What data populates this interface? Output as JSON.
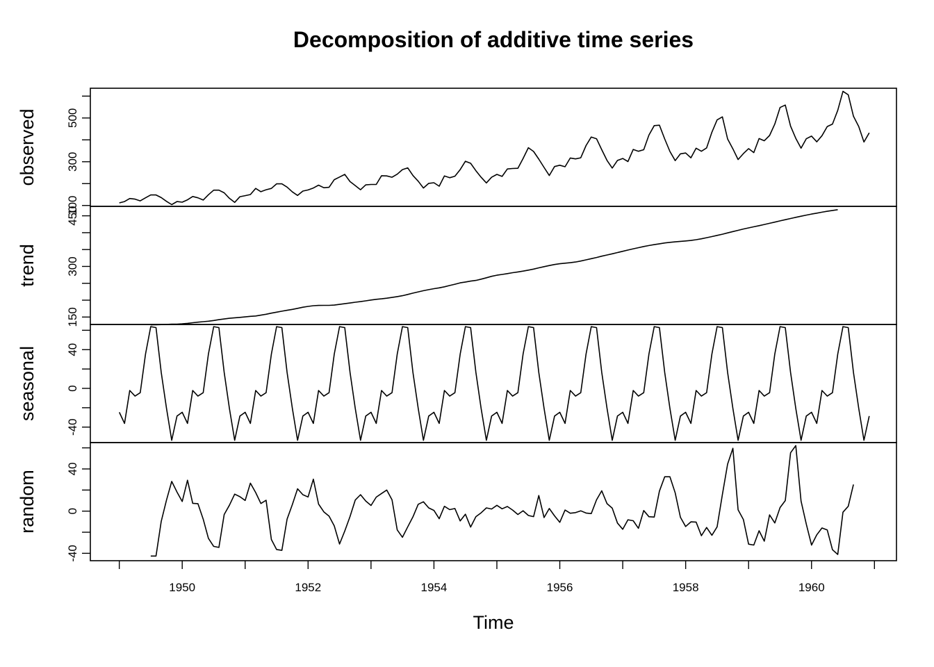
{
  "chart_data": {
    "type": "line",
    "title": "Decomposition of additive time series",
    "xlabel": "Time",
    "x_start": 1949,
    "frequency": 12,
    "xlim": [
      1948.54,
      1961.35
    ],
    "x_ticks": [
      1950,
      1952,
      1954,
      1956,
      1958,
      1960
    ],
    "grid": false,
    "panels": [
      {
        "name": "observed",
        "ylim": [
          96,
          636
        ],
        "y_tick_labels": [
          100,
          300,
          500
        ],
        "y_minor_ticks": [
          100,
          200,
          300,
          400,
          500,
          600
        ],
        "values": [
          112,
          118,
          132,
          129,
          121,
          135,
          148,
          148,
          136,
          119,
          104,
          118,
          115,
          126,
          141,
          135,
          125,
          149,
          170,
          170,
          158,
          133,
          114,
          140,
          145,
          150,
          178,
          163,
          172,
          178,
          199,
          199,
          184,
          162,
          146,
          166,
          171,
          180,
          193,
          181,
          183,
          218,
          230,
          242,
          209,
          191,
          172,
          194,
          196,
          196,
          236,
          235,
          229,
          243,
          264,
          272,
          237,
          211,
          180,
          201,
          204,
          188,
          235,
          227,
          234,
          264,
          302,
          293,
          259,
          229,
          203,
          229,
          242,
          233,
          267,
          269,
          270,
          315,
          364,
          347,
          312,
          274,
          237,
          278,
          284,
          277,
          317,
          313,
          318,
          374,
          413,
          405,
          355,
          306,
          271,
          306,
          315,
          301,
          356,
          348,
          355,
          422,
          465,
          467,
          404,
          347,
          305,
          336,
          340,
          318,
          362,
          348,
          363,
          435,
          491,
          505,
          404,
          359,
          310,
          337,
          360,
          342,
          406,
          396,
          420,
          472,
          548,
          559,
          463,
          407,
          362,
          405,
          417,
          391,
          419,
          461,
          472,
          535,
          622,
          606,
          508,
          461,
          390,
          432
        ]
      },
      {
        "name": "trend",
        "ylim": [
          128,
          478
        ],
        "y_tick_labels": [
          150,
          300,
          450
        ],
        "y_minor_ticks": [
          150,
          200,
          250,
          300,
          350,
          400,
          450
        ],
        "offset": 6,
        "values": [
          126.8,
          127.2,
          127.6,
          128.3,
          128.8,
          129.0,
          129.8,
          131.3,
          133.1,
          134.8,
          136.3,
          137.7,
          139.7,
          142.2,
          144.2,
          146.3,
          147.7,
          149.0,
          150.5,
          152.0,
          153.2,
          155.5,
          158.3,
          161.5,
          164.4,
          167.4,
          170.1,
          172.7,
          175.8,
          179.0,
          181.6,
          183.6,
          184.5,
          184.7,
          184.7,
          185.5,
          187.5,
          189.6,
          191.7,
          193.8,
          195.7,
          197.9,
          200.5,
          202.5,
          204.0,
          205.9,
          208.1,
          210.6,
          213.3,
          217.0,
          220.9,
          224.5,
          228.0,
          231.1,
          234.0,
          236.5,
          239.6,
          243.4,
          247.3,
          251.3,
          253.8,
          256.5,
          258.6,
          262.3,
          266.3,
          270.6,
          273.9,
          276.3,
          278.7,
          281.3,
          283.7,
          286.1,
          288.9,
          292.0,
          295.7,
          299.2,
          302.6,
          305.7,
          307.9,
          309.6,
          311.0,
          313.0,
          315.9,
          319.4,
          322.9,
          326.5,
          330.4,
          333.8,
          337.3,
          341.0,
          344.7,
          348.5,
          352.3,
          355.6,
          358.9,
          361.8,
          364.6,
          367.1,
          369.4,
          371.3,
          372.8,
          374.2,
          375.4,
          377.0,
          379.1,
          381.8,
          385.1,
          388.5,
          392.0,
          395.5,
          399.4,
          403.2,
          407.0,
          410.8,
          414.2,
          417.5,
          420.8,
          424.3,
          427.8,
          431.3,
          434.9,
          438.4,
          441.9,
          445.4,
          448.8,
          452.0,
          455.1,
          457.9,
          460.7,
          463.3,
          465.8,
          468.2
        ]
      },
      {
        "name": "seasonal",
        "ylim": [
          -56,
          66
        ],
        "y_tick_labels": [
          -40,
          0,
          40
        ],
        "y_minor_ticks": [
          -40,
          -20,
          0,
          20,
          40,
          60
        ],
        "repeat": 12,
        "values": [
          -24.7,
          -36.2,
          -2.2,
          -8.0,
          -4.5,
          35.4,
          63.8,
          62.8,
          16.5,
          -20.6,
          -53.6,
          -28.6
        ]
      },
      {
        "name": "random",
        "ylim": [
          -47,
          65
        ],
        "y_tick_labels": [
          -40,
          0,
          40
        ],
        "y_minor_ticks": [
          -40,
          -20,
          0,
          20,
          40,
          60
        ],
        "offset": 6,
        "values": [
          -42.6,
          -42.6,
          -9.7,
          10.5,
          28.2,
          18.1,
          9.1,
          29.3,
          7.4,
          7.1,
          -7.6,
          -25.8,
          -33.4,
          -34.4,
          -3.2,
          5.6,
          16.1,
          13.7,
          10.1,
          26.5,
          17.6,
          7.2,
          10.3,
          -26.9,
          -36.4,
          -37.2,
          -7.6,
          6.3,
          21.2,
          15.6,
          13.4,
          30.3,
          6.7,
          -0.7,
          -4.8,
          -14.0,
          -31.2,
          -18.9,
          -5.1,
          10.5,
          15.6,
          9.6,
          5.4,
          13.3,
          16.7,
          20.0,
          10.7,
          -17.8,
          -24.8,
          -14.9,
          -5.4,
          6.5,
          8.9,
          3.1,
          0.7,
          -7.2,
          4.6,
          1.4,
          2.5,
          -9.3,
          -2.9,
          -15.1,
          -5.2,
          -1.6,
          3.1,
          2.0,
          5.5,
          2.2,
          4.4,
          1.0,
          -3.2,
          0.4,
          -4.1,
          -5.2,
          14.8,
          -6.1,
          2.5,
          -4.5,
          -10.6,
          1.0,
          -2.0,
          -1.4,
          0.3,
          -1.8,
          -2.3,
          10.7,
          19.3,
          7.1,
          2.8,
          -11.3,
          -17.2,
          -8.2,
          -9.1,
          -16.3,
          0.6,
          -5.3,
          -5.6,
          19.0,
          32.6,
          32.6,
          17.3,
          -5.8,
          -14.6,
          -10.2,
          -10.4,
          -23.3,
          -15.5,
          -22.9,
          -14.9,
          15.7,
          44.6,
          59.6,
          1.2,
          -7.9,
          -31.3,
          -32.2,
          -18.6,
          -28.5,
          -3.5,
          -11.2,
          3.4,
          10.0,
          55.3,
          62.2,
          9.5,
          -12.2,
          -32.2,
          -22.5,
          -16.0,
          -17.9,
          -36.6,
          -41.1,
          -1.0,
          4.6,
          25.3
        ]
      }
    ]
  }
}
